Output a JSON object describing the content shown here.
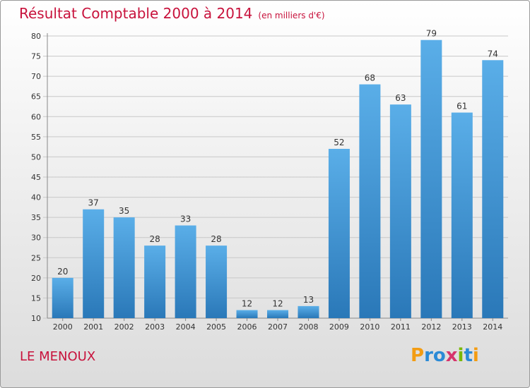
{
  "title": "Résultat Comptable 2000 à 2014",
  "subtitle": "(en milliers d'€)",
  "commune": "LE MENOUX",
  "logo": {
    "text": "Proxiti",
    "letters": [
      {
        "ch": "P",
        "color": "#f39c12"
      },
      {
        "ch": "r",
        "color": "#2a8ad6"
      },
      {
        "ch": "o",
        "color": "#2a8ad6"
      },
      {
        "ch": "x",
        "color": "#d6336c"
      },
      {
        "ch": "i",
        "color": "#7ab800"
      },
      {
        "ch": "t",
        "color": "#2a8ad6"
      },
      {
        "ch": "i",
        "color": "#f39c12"
      }
    ]
  },
  "colors": {
    "title": "#c8123c",
    "bar_top": "#5aaee8",
    "bar_bottom": "#2a78b8"
  },
  "chart_data": {
    "type": "bar",
    "categories": [
      "2000",
      "2001",
      "2002",
      "2003",
      "2004",
      "2005",
      "2006",
      "2007",
      "2008",
      "2009",
      "2010",
      "2011",
      "2012",
      "2013",
      "2014"
    ],
    "values": [
      20,
      37,
      35,
      28,
      33,
      28,
      12,
      12,
      13,
      52,
      68,
      63,
      79,
      61,
      74
    ],
    "ylim": [
      10,
      80
    ],
    "yticks": [
      10,
      15,
      20,
      25,
      30,
      35,
      40,
      45,
      50,
      55,
      60,
      65,
      70,
      75,
      80
    ],
    "grid": true
  }
}
